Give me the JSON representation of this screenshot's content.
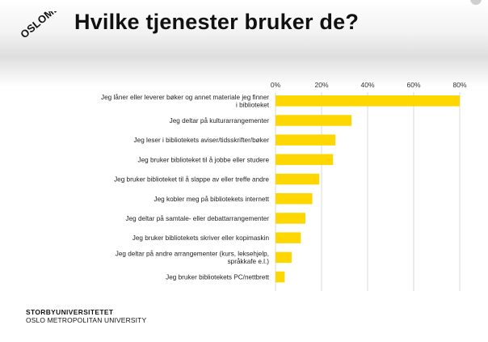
{
  "slide": {
    "title": "Hvilke tjenester bruker de?",
    "logo_text": "OSLOMET",
    "footer_line1": "STORBYUNIVERSITETET",
    "footer_line2": "OSLO METROPOLITAN UNIVERSITY"
  },
  "colors": {
    "bar": "#FFD700",
    "grid": "#c8c8c8",
    "text": "#111111"
  },
  "chart_data": {
    "type": "bar",
    "orientation": "horizontal",
    "title": "",
    "xlabel": "",
    "ylabel": "",
    "xlim": [
      0,
      80
    ],
    "ticks": [
      0,
      20,
      40,
      60,
      80
    ],
    "tick_labels": [
      "0%",
      "20%",
      "40%",
      "60%",
      "80%"
    ],
    "grid": true,
    "legend": "none",
    "categories": [
      [
        "Jeg låner eller leverer bøker og annet materiale jeg finner",
        "i biblioteket"
      ],
      [
        "Jeg deltar på kulturarrangementer"
      ],
      [
        "Jeg leser i bibliotekets aviser/tidsskrifter/bøker"
      ],
      [
        "Jeg bruker biblioteket til å jobbe eller studere"
      ],
      [
        "Jeg bruker biblioteket til å slappe av eller treffe andre"
      ],
      [
        "Jeg kobler meg på bibliotekets internett"
      ],
      [
        "Jeg deltar på samtale- eller debattarrangementer"
      ],
      [
        "Jeg bruker bibliotekets skriver eller kopimaskin"
      ],
      [
        "Jeg deltar på andre arrangementer (kurs, leksehjelp,",
        "språkkafe e.l.)"
      ],
      [
        "Jeg bruker bibliotekets PC/nettbrett"
      ]
    ],
    "values": [
      80,
      33,
      26,
      25,
      19,
      16,
      13,
      11,
      7,
      4
    ]
  }
}
